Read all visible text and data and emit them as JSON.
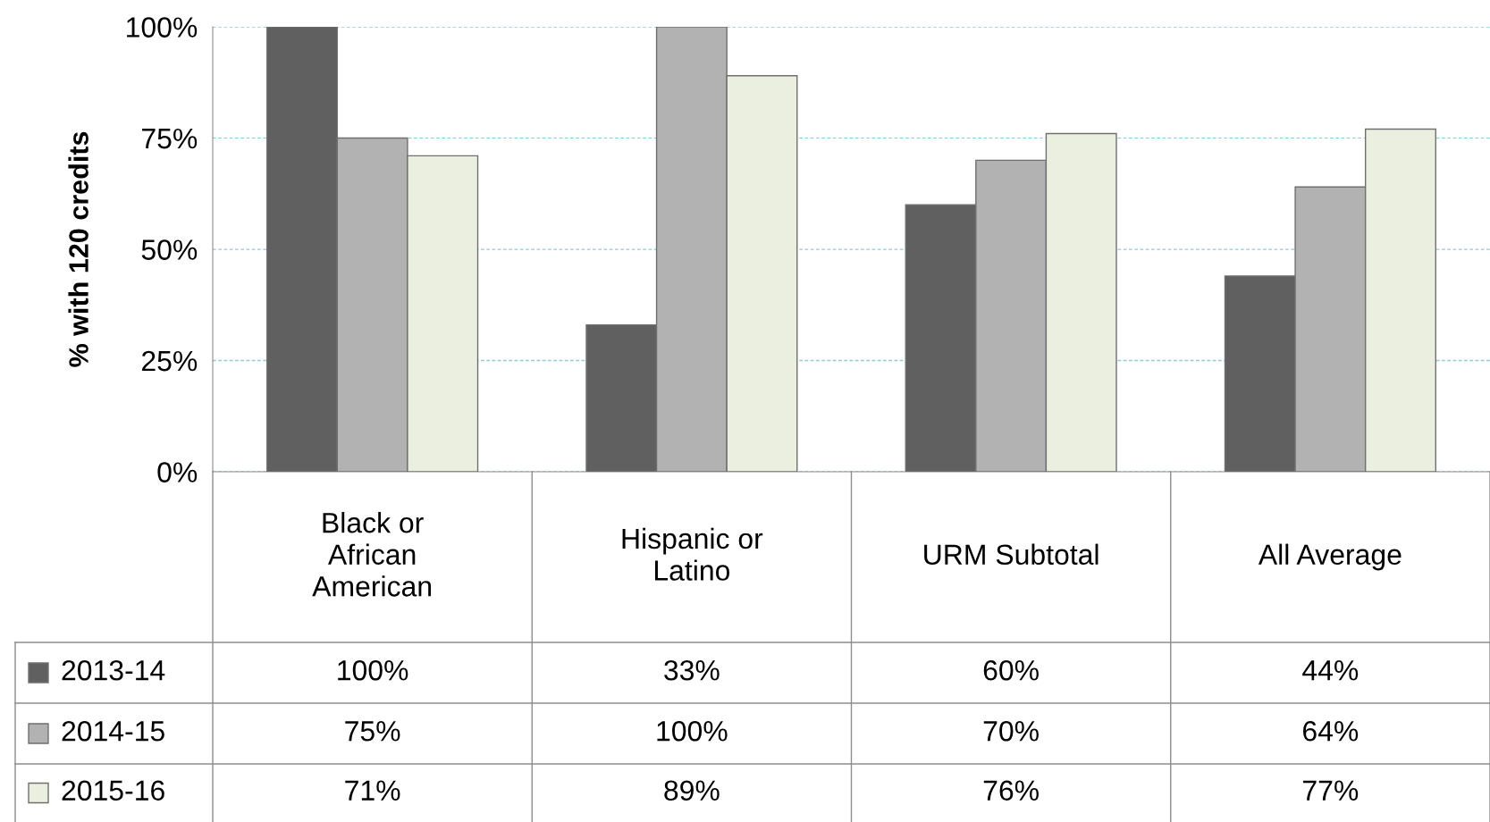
{
  "chart_data": {
    "type": "bar",
    "ylabel": "% with 120 credits",
    "categories": [
      "Black or\nAfrican\nAmerican",
      "Hispanic or\nLatino",
      "URM Subtotal",
      "All Average"
    ],
    "series": [
      {
        "name": "2013-14",
        "color": "#606060",
        "values": [
          100,
          33,
          60,
          44
        ]
      },
      {
        "name": "2014-15",
        "color": "#b2b2b2",
        "values": [
          75,
          100,
          70,
          64
        ]
      },
      {
        "name": "2015-16",
        "color": "#ebefe0",
        "values": [
          71,
          89,
          76,
          77
        ]
      }
    ],
    "ylim": [
      0,
      100
    ],
    "yticks": [
      {
        "value": 0,
        "label": "0%"
      },
      {
        "value": 25,
        "label": "25%"
      },
      {
        "value": 50,
        "label": "50%"
      },
      {
        "value": 75,
        "label": "75%"
      },
      {
        "value": 100,
        "label": "100%"
      }
    ],
    "value_labels": [
      [
        "100%",
        "33%",
        "60%",
        "44%"
      ],
      [
        "75%",
        "100%",
        "70%",
        "64%"
      ],
      [
        "71%",
        "89%",
        "76%",
        "77%"
      ]
    ],
    "grid": "y",
    "legend": "bottom"
  }
}
